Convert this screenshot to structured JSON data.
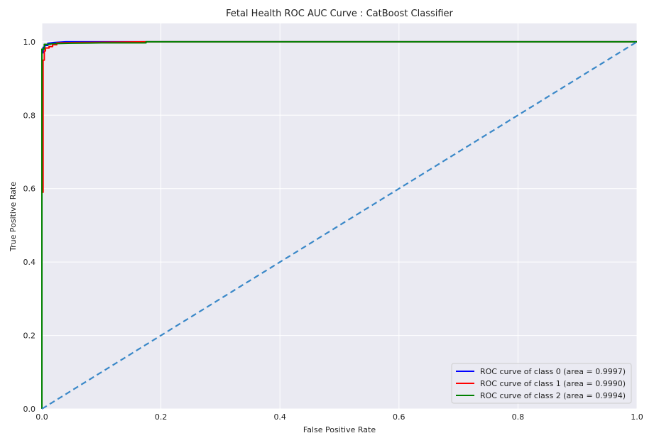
{
  "chart_data": {
    "type": "line",
    "title": "Fetal Health ROC AUC Curve : CatBoost Classifier",
    "xlabel": "False Positive Rate",
    "ylabel": "True Positive Rate",
    "xlim": [
      0.0,
      1.0
    ],
    "ylim": [
      0.0,
      1.05
    ],
    "x_ticks": [
      0.0,
      0.2,
      0.4,
      0.6,
      0.8,
      1.0
    ],
    "x_tick_labels": [
      "0.0",
      "0.2",
      "0.4",
      "0.6",
      "0.8",
      "1.0"
    ],
    "y_ticks": [
      0.0,
      0.2,
      0.4,
      0.6,
      0.8,
      1.0
    ],
    "y_tick_labels": [
      "0.0",
      "0.2",
      "0.4",
      "0.6",
      "0.8",
      "1.0"
    ],
    "grid": true,
    "background_color": "#eaeaf2",
    "legend_position": "lower-right",
    "series": [
      {
        "name": "ROC curve of class 0 (area = 0.9997)",
        "color": "#0000ff",
        "style": "solid",
        "x": [
          0.0,
          0.0,
          0.002,
          0.002,
          0.005,
          0.005,
          0.01,
          0.01,
          0.02,
          0.04,
          1.0
        ],
        "y": [
          0.0,
          0.97,
          0.97,
          0.985,
          0.985,
          0.99,
          0.99,
          0.996,
          0.998,
          1.0,
          1.0
        ]
      },
      {
        "name": "ROC curve of class 1 (area = 0.9990)",
        "color": "#ff0000",
        "style": "solid",
        "x": [
          0.0,
          0.0,
          0.002,
          0.002,
          0.004,
          0.004,
          0.006,
          0.006,
          0.012,
          0.012,
          0.018,
          0.018,
          0.025,
          0.025,
          0.06,
          0.12,
          0.175,
          1.0
        ],
        "y": [
          0.0,
          0.59,
          0.59,
          0.95,
          0.95,
          0.975,
          0.975,
          0.983,
          0.983,
          0.987,
          0.987,
          0.992,
          0.992,
          0.997,
          0.998,
          0.999,
          1.0,
          1.0
        ]
      },
      {
        "name": "ROC curve of class 2 (area = 0.9994)",
        "color": "#008000",
        "style": "solid",
        "x": [
          0.0,
          0.0,
          0.004,
          0.004,
          0.01,
          0.02,
          0.05,
          0.1,
          0.175,
          0.175,
          1.0
        ],
        "y": [
          0.0,
          0.98,
          0.98,
          0.993,
          0.993,
          0.995,
          0.996,
          0.997,
          0.997,
          1.0,
          1.0
        ]
      },
      {
        "name": "",
        "color": "#3a88c8",
        "style": "dashed",
        "x": [
          0.0,
          1.0
        ],
        "y": [
          0.0,
          1.0
        ]
      }
    ]
  }
}
